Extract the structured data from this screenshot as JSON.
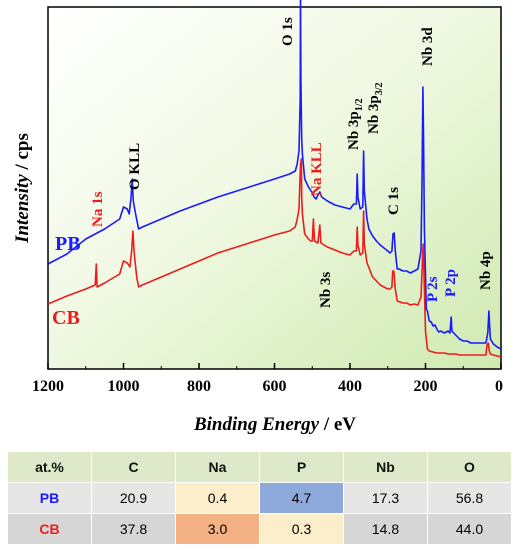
{
  "chart_data": {
    "type": "line",
    "xlabel_main": "Binding Energy",
    "xlabel_unit": " / eV",
    "ylabel_main": "Intensity",
    "ylabel_unit": " / cps",
    "xlim": [
      1200,
      0
    ],
    "x_ticks": [
      1200,
      1000,
      800,
      600,
      400,
      200,
      0
    ],
    "grid": false,
    "series": [
      {
        "name": "PB",
        "color": "#1a1aff",
        "points": [
          [
            1200,
            105
          ],
          [
            1150,
            115
          ],
          [
            1100,
            130
          ],
          [
            1050,
            140
          ],
          [
            1010,
            150
          ],
          [
            1000,
            162
          ],
          [
            990,
            160
          ],
          [
            985,
            155
          ],
          [
            980,
            172
          ],
          [
            977,
            190
          ],
          [
            974,
            168
          ],
          [
            968,
            155
          ],
          [
            960,
            140
          ],
          [
            950,
            142
          ],
          [
            900,
            150
          ],
          [
            850,
            158
          ],
          [
            800,
            165
          ],
          [
            750,
            172
          ],
          [
            700,
            178
          ],
          [
            650,
            184
          ],
          [
            600,
            190
          ],
          [
            560,
            195
          ],
          [
            545,
            198
          ],
          [
            540,
            205
          ],
          [
            535,
            218
          ],
          [
            532,
            270
          ],
          [
            531,
            375
          ],
          [
            530,
            290
          ],
          [
            528,
            230
          ],
          [
            526,
            215
          ],
          [
            520,
            190
          ],
          [
            510,
            182
          ],
          [
            500,
            176
          ],
          [
            495,
            172
          ],
          [
            490,
            170
          ],
          [
            485,
            174
          ],
          [
            480,
            177
          ],
          [
            475,
            172
          ],
          [
            460,
            168
          ],
          [
            440,
            164
          ],
          [
            420,
            162
          ],
          [
            400,
            160
          ],
          [
            390,
            165
          ],
          [
            383,
            165
          ],
          [
            381,
            195
          ],
          [
            379,
            172
          ],
          [
            373,
            160
          ],
          [
            366,
            162
          ],
          [
            364,
            218
          ],
          [
            362,
            178
          ],
          [
            355,
            150
          ],
          [
            350,
            140
          ],
          [
            340,
            133
          ],
          [
            330,
            128
          ],
          [
            320,
            124
          ],
          [
            300,
            118
          ],
          [
            294,
            116
          ],
          [
            289,
            118
          ],
          [
            286,
            135
          ],
          [
            283,
            136
          ],
          [
            280,
            118
          ],
          [
            275,
            100
          ],
          [
            270,
            100
          ],
          [
            260,
            98
          ],
          [
            250,
            98
          ],
          [
            240,
            96
          ],
          [
            230,
            98
          ],
          [
            220,
            100
          ],
          [
            212,
            118
          ],
          [
            209,
            195
          ],
          [
            207,
            282
          ],
          [
            205,
            225
          ],
          [
            203,
            140
          ],
          [
            198,
            60
          ],
          [
            195,
            58
          ],
          [
            190,
            48
          ],
          [
            185,
            47
          ],
          [
            180,
            43
          ],
          [
            175,
            44
          ],
          [
            170,
            40
          ],
          [
            165,
            37
          ],
          [
            160,
            38
          ],
          [
            150,
            36
          ],
          [
            140,
            38
          ],
          [
            135,
            36
          ],
          [
            132,
            52
          ],
          [
            130,
            38
          ],
          [
            120,
            34
          ],
          [
            110,
            30
          ],
          [
            100,
            28
          ],
          [
            90,
            28
          ],
          [
            80,
            26
          ],
          [
            70,
            26
          ],
          [
            60,
            26
          ],
          [
            50,
            26
          ],
          [
            40,
            26
          ],
          [
            35,
            36
          ],
          [
            32,
            58
          ],
          [
            30,
            42
          ],
          [
            28,
            30
          ],
          [
            20,
            25
          ],
          [
            10,
            22
          ],
          [
            0,
            20
          ]
        ]
      },
      {
        "name": "CB",
        "color": "#ee1c1c",
        "points": [
          [
            1200,
            65
          ],
          [
            1150,
            73
          ],
          [
            1100,
            80
          ],
          [
            1075,
            84
          ],
          [
            1072,
            105
          ],
          [
            1070,
            82
          ],
          [
            1050,
            86
          ],
          [
            1010,
            95
          ],
          [
            1000,
            108
          ],
          [
            990,
            106
          ],
          [
            983,
            102
          ],
          [
            978,
            120
          ],
          [
            975,
            138
          ],
          [
            972,
            117
          ],
          [
            965,
            92
          ],
          [
            960,
            82
          ],
          [
            950,
            84
          ],
          [
            900,
            92
          ],
          [
            850,
            100
          ],
          [
            800,
            108
          ],
          [
            750,
            116
          ],
          [
            700,
            122
          ],
          [
            650,
            128
          ],
          [
            600,
            134
          ],
          [
            560,
            138
          ],
          [
            545,
            142
          ],
          [
            540,
            150
          ],
          [
            535,
            160
          ],
          [
            531,
            205
          ],
          [
            529,
            210
          ],
          [
            528,
            172
          ],
          [
            526,
            155
          ],
          [
            520,
            135
          ],
          [
            510,
            130
          ],
          [
            505,
            128
          ],
          [
            500,
            128
          ],
          [
            497,
            150
          ],
          [
            494,
            128
          ],
          [
            485,
            126
          ],
          [
            480,
            144
          ],
          [
            477,
            126
          ],
          [
            460,
            122
          ],
          [
            440,
            119
          ],
          [
            420,
            116
          ],
          [
            400,
            114
          ],
          [
            390,
            118
          ],
          [
            383,
            118
          ],
          [
            381,
            142
          ],
          [
            379,
            124
          ],
          [
            373,
            114
          ],
          [
            366,
            116
          ],
          [
            364,
            158
          ],
          [
            362,
            125
          ],
          [
            355,
            106
          ],
          [
            340,
            92
          ],
          [
            320,
            84
          ],
          [
            300,
            80
          ],
          [
            294,
            80
          ],
          [
            289,
            82
          ],
          [
            287,
            98
          ],
          [
            284,
            98
          ],
          [
            280,
            80
          ],
          [
            275,
            68
          ],
          [
            260,
            66
          ],
          [
            250,
            66
          ],
          [
            240,
            64
          ],
          [
            230,
            65
          ],
          [
            220,
            64
          ],
          [
            212,
            72
          ],
          [
            208,
            110
          ],
          [
            206,
            125
          ],
          [
            204,
            95
          ],
          [
            200,
            38
          ],
          [
            195,
            20
          ],
          [
            190,
            18
          ],
          [
            180,
            17
          ],
          [
            170,
            16
          ],
          [
            160,
            16
          ],
          [
            150,
            16
          ],
          [
            140,
            15
          ],
          [
            130,
            15
          ],
          [
            120,
            15
          ],
          [
            110,
            14
          ],
          [
            100,
            14
          ],
          [
            90,
            14
          ],
          [
            80,
            14
          ],
          [
            70,
            14
          ],
          [
            60,
            14
          ],
          [
            50,
            14
          ],
          [
            40,
            14
          ],
          [
            37,
            24
          ],
          [
            34,
            26
          ],
          [
            31,
            18
          ],
          [
            28,
            15
          ],
          [
            20,
            14
          ],
          [
            10,
            13
          ],
          [
            0,
            12
          ]
        ]
      }
    ],
    "annotations": [
      {
        "text": "O 1s",
        "color": "#000000"
      },
      {
        "text": "Nb 3d",
        "color": "#000000"
      },
      {
        "text": "Na KLL",
        "color": "#ee1c1c"
      },
      {
        "text": "O KLL",
        "color": "#000000"
      },
      {
        "text": "Na 1s",
        "color": "#ee1c1c"
      },
      {
        "text": "C 1s",
        "color": "#000000"
      },
      {
        "text": "Nb 3s",
        "color": "#000000"
      },
      {
        "text": "Nb 4p",
        "color": "#000000"
      },
      {
        "text": "P 2s",
        "color": "#1a1aff"
      },
      {
        "text": "P 2p",
        "color": "#1a1aff"
      }
    ],
    "nb3p": {
      "a": "Nb 3p",
      "a_sub": "1/2",
      "b": "Nb 3p",
      "b_sub": "3/2"
    }
  },
  "table": {
    "headers": [
      "at.%",
      "C",
      "Na",
      "P",
      "Nb",
      "O"
    ],
    "rows": [
      {
        "name": "PB",
        "name_color": "#1a1aff",
        "values": [
          "20.9",
          "0.4",
          "4.7",
          "17.3",
          "56.8"
        ],
        "highlights": [
          "",
          "#fdeecb",
          "#8eaadb",
          "",
          ""
        ]
      },
      {
        "name": "CB",
        "name_color": "#ee1c1c",
        "values": [
          "37.8",
          "3.0",
          "0.3",
          "14.8",
          "44.0"
        ],
        "highlights": [
          "",
          "#f4b183",
          "#fdeecb",
          "",
          ""
        ]
      }
    ]
  }
}
